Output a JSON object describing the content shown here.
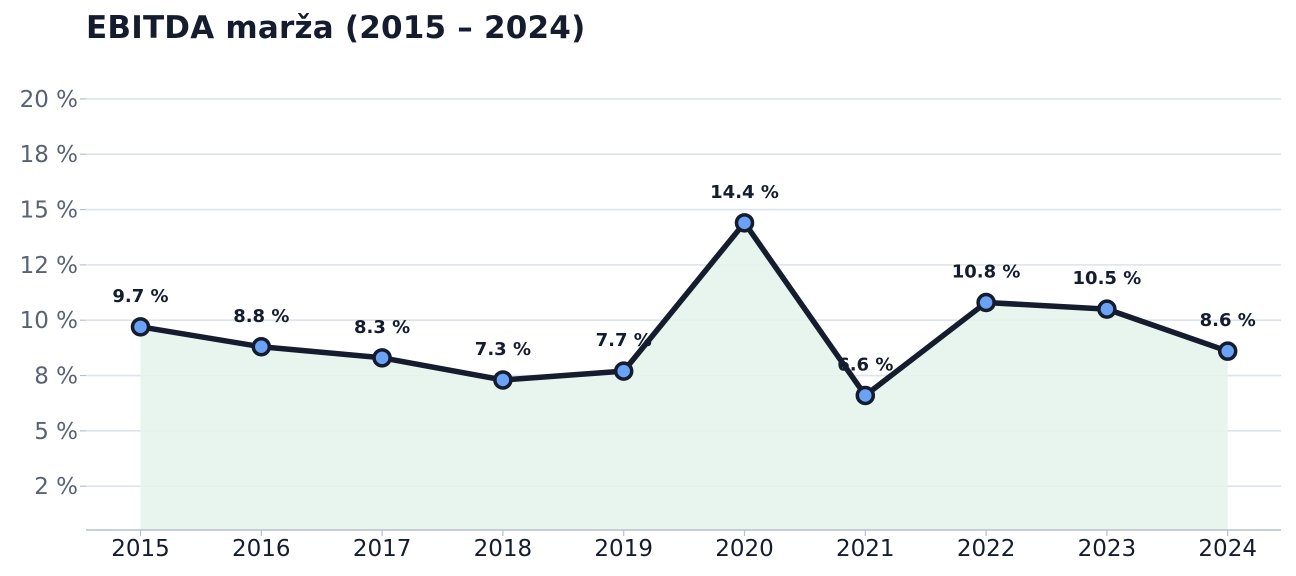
{
  "chart_data": {
    "type": "line",
    "title": "EBITDA marža (2015 – 2024)",
    "xlabel": "",
    "ylabel": "",
    "categories": [
      "2015",
      "2016",
      "2017",
      "2018",
      "2019",
      "2020",
      "2021",
      "2022",
      "2023",
      "2024"
    ],
    "series": [
      {
        "values": [
          9.7,
          8.8,
          8.3,
          7.3,
          7.7,
          14.4,
          6.6,
          10.8,
          10.5,
          8.6
        ],
        "data_labels": [
          "9.7 %",
          "8.8 %",
          "8.3 %",
          "7.3 %",
          "7.7 %",
          "14.4 %",
          "6.6 %",
          "10.8 %",
          "10.5 %",
          "8.6 %"
        ]
      }
    ],
    "ylim": [
      0,
      19.5
    ],
    "y_ticks": [
      {
        "value": 2.5,
        "label": "2 %"
      },
      {
        "value": 5.0,
        "label": "5 %"
      },
      {
        "value": 7.5,
        "label": "8 %"
      },
      {
        "value": 10.0,
        "label": "10 %"
      },
      {
        "value": 12.5,
        "label": "12 %"
      },
      {
        "value": 15.0,
        "label": "15 %"
      },
      {
        "value": 17.5,
        "label": "18 %"
      },
      {
        "value": 20.0,
        "label": "20 %"
      }
    ],
    "grid": true,
    "legend": "none",
    "colors": {
      "line": "#141c2e",
      "marker_fill": "#6aa2f5",
      "area_fill": "#e6f3ec",
      "grid": "#dde3ea",
      "axis": "#b9c0cb"
    }
  }
}
